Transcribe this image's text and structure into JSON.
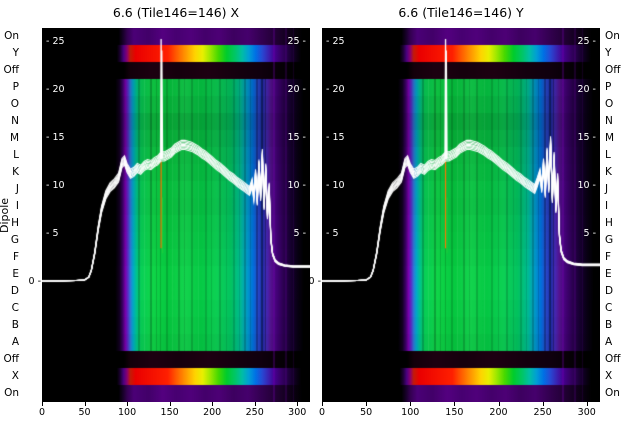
{
  "chart_data": {
    "type": "heatmap",
    "titles": [
      "6.6 (Tile146=146) X",
      "6.6 (Tile146=146) Y"
    ],
    "ylabel": "Dipole",
    "row_labels": [
      "On",
      "Y",
      "Off",
      "P",
      "O",
      "N",
      "M",
      "L",
      "K",
      "J",
      "I",
      "H",
      "G",
      "F",
      "E",
      "D",
      "C",
      "B",
      "A",
      "Off",
      "X",
      "On"
    ],
    "x_ticks": [
      0,
      50,
      100,
      150,
      200,
      250,
      300
    ],
    "x_range": [
      0,
      315
    ],
    "overlay_axis": {
      "zero_frac": 0.679,
      "top_frac": 0.0374,
      "max_value": 25,
      "inner_ticks": [
        25,
        20,
        15,
        10,
        5
      ],
      "zero_label": "0"
    },
    "row_kinds": [
      "on",
      "rainbow",
      "off",
      "spectrum",
      "spectrum",
      "spectrum",
      "spectrum",
      "spectrum",
      "spectrum",
      "spectrum",
      "spectrum",
      "spectrum",
      "spectrum",
      "spectrum",
      "spectrum",
      "spectrum",
      "spectrum",
      "spectrum",
      "spectrum",
      "off",
      "rainbow",
      "on"
    ],
    "row_shades": [
      0,
      0,
      0,
      0.1,
      0.14,
      0.2,
      0.16,
      0.12,
      0.1,
      0.07,
      0.08,
      0.05,
      0.04,
      0.02,
      0,
      0,
      0.01,
      0.03,
      0.06,
      0,
      0,
      0
    ],
    "palettes": {
      "spectrum": [
        [
          0,
          "#000000"
        ],
        [
          86,
          "#000000"
        ],
        [
          91,
          "#120020"
        ],
        [
          95,
          "#3f006c"
        ],
        [
          98,
          "#7b00ae"
        ],
        [
          101,
          "#5a2ec8"
        ],
        [
          104,
          "#2e7ad8"
        ],
        [
          107,
          "#00aacb"
        ],
        [
          111,
          "#00c48e"
        ],
        [
          116,
          "#08d058"
        ],
        [
          130,
          "#10d648"
        ],
        [
          150,
          "#06ca40"
        ],
        [
          168,
          "#14d44e"
        ],
        [
          186,
          "#05ca44"
        ],
        [
          205,
          "#0dd154"
        ],
        [
          222,
          "#03c460"
        ],
        [
          233,
          "#00bd92"
        ],
        [
          241,
          "#009cc9"
        ],
        [
          248,
          "#0071dd"
        ],
        [
          254,
          "#2b49cc"
        ],
        [
          259,
          "#1d2fa9"
        ],
        [
          264,
          "#4629b5"
        ],
        [
          269,
          "#55128f"
        ],
        [
          276,
          "#440278"
        ],
        [
          284,
          "#2b0150"
        ],
        [
          292,
          "#180032"
        ],
        [
          300,
          "#0a0016"
        ],
        [
          308,
          "#000000"
        ],
        [
          315,
          "#000000"
        ]
      ],
      "rainbow": [
        [
          0,
          "#000000"
        ],
        [
          88,
          "#000000"
        ],
        [
          92,
          "#1d0034"
        ],
        [
          96,
          "#4b0081"
        ],
        [
          100,
          "#8a0071"
        ],
        [
          104,
          "#c41c06"
        ],
        [
          110,
          "#ea0000"
        ],
        [
          148,
          "#ff2000"
        ],
        [
          158,
          "#ff5c00"
        ],
        [
          170,
          "#ff9e00"
        ],
        [
          180,
          "#ffd400"
        ],
        [
          189,
          "#e8f000"
        ],
        [
          197,
          "#a4e900"
        ],
        [
          207,
          "#47d900"
        ],
        [
          217,
          "#00cc2c"
        ],
        [
          227,
          "#00c667"
        ],
        [
          235,
          "#00bfa4"
        ],
        [
          243,
          "#009fd5"
        ],
        [
          251,
          "#0071e5"
        ],
        [
          259,
          "#2848d3"
        ],
        [
          266,
          "#3a23b3"
        ],
        [
          273,
          "#470092"
        ],
        [
          281,
          "#370067"
        ],
        [
          289,
          "#230044"
        ],
        [
          297,
          "#100020"
        ],
        [
          305,
          "#000000"
        ],
        [
          315,
          "#000000"
        ]
      ],
      "on": [
        [
          0,
          "#000000"
        ],
        [
          90,
          "#000000"
        ],
        [
          95,
          "#160027"
        ],
        [
          100,
          "#330050"
        ],
        [
          108,
          "#4b0077"
        ],
        [
          125,
          "#420069"
        ],
        [
          142,
          "#540080"
        ],
        [
          158,
          "#470071"
        ],
        [
          175,
          "#50007b"
        ],
        [
          192,
          "#44006b"
        ],
        [
          208,
          "#4d0076"
        ],
        [
          225,
          "#3d0060"
        ],
        [
          242,
          "#46006d"
        ],
        [
          256,
          "#350053"
        ],
        [
          270,
          "#27003d"
        ],
        [
          284,
          "#170024"
        ],
        [
          296,
          "#0a0011"
        ],
        [
          306,
          "#000000"
        ],
        [
          315,
          "#000000"
        ]
      ],
      "off": [
        [
          0,
          "#000000"
        ],
        [
          96,
          "#000000"
        ],
        [
          104,
          "#14000b"
        ],
        [
          130,
          "#1d0011"
        ],
        [
          160,
          "#16000d"
        ],
        [
          195,
          "#1e0012"
        ],
        [
          230,
          "#15000f"
        ],
        [
          258,
          "#10000e"
        ],
        [
          280,
          "#070007"
        ],
        [
          300,
          "#000000"
        ],
        [
          315,
          "#000000"
        ]
      ]
    },
    "stripes": [
      {
        "x": 113,
        "w": 2,
        "c": "rgba(0,0,0,0.18)"
      },
      {
        "x": 120,
        "w": 1,
        "c": "rgba(200,255,200,0.10)"
      },
      {
        "x": 127,
        "w": 2,
        "c": "rgba(0,0,0,0.22)"
      },
      {
        "x": 134,
        "w": 1,
        "c": "rgba(0,0,0,0.15)"
      },
      {
        "x": 139,
        "w": 1,
        "c": "rgba(0,40,0,0.20)"
      },
      {
        "x": 146,
        "w": 2,
        "c": "rgba(0,0,0,0.15)"
      },
      {
        "x": 153,
        "w": 1,
        "c": "rgba(220,255,220,0.08)"
      },
      {
        "x": 160,
        "w": 2,
        "c": "rgba(0,0,0,0.18)"
      },
      {
        "x": 167,
        "w": 1,
        "c": "rgba(0,0,0,0.12)"
      },
      {
        "x": 175,
        "w": 2,
        "c": "rgba(0,0,0,0.16)"
      },
      {
        "x": 183,
        "w": 1,
        "c": "rgba(220,255,220,0.07)"
      },
      {
        "x": 191,
        "w": 2,
        "c": "rgba(0,0,0,0.14)"
      },
      {
        "x": 199,
        "w": 1,
        "c": "rgba(0,0,0,0.12)"
      },
      {
        "x": 208,
        "w": 2,
        "c": "rgba(0,0,0,0.16)"
      },
      {
        "x": 216,
        "w": 1,
        "c": "rgba(0,0,0,0.10)"
      },
      {
        "x": 224,
        "w": 2,
        "c": "rgba(0,0,0,0.14)"
      },
      {
        "x": 231,
        "w": 1,
        "c": "rgba(0,0,0,0.12)"
      },
      {
        "x": 238,
        "w": 2,
        "c": "rgba(0,0,0,0.18)"
      },
      {
        "x": 245,
        "w": 1,
        "c": "rgba(0,0,0,0.15)"
      },
      {
        "x": 251,
        "w": 2,
        "c": "rgba(0,0,30,0.30)"
      },
      {
        "x": 257,
        "w": 2,
        "c": "rgba(0,0,0,0.35)"
      },
      {
        "x": 262,
        "w": 1,
        "c": "rgba(0,0,0,0.30)"
      },
      {
        "x": 272,
        "w": 2,
        "c": "rgba(120,0,180,0.30)",
        "full": true
      },
      {
        "x": 286,
        "w": 2,
        "c": "rgba(95,0,150,0.26)",
        "full": true
      },
      {
        "x": 295,
        "w": 1,
        "c": "rgba(80,0,130,0.22)",
        "full": true
      }
    ],
    "vlines": [
      {
        "x": 140,
        "v0": 3.5,
        "v1": 12.6,
        "color": "#ff7300"
      },
      {
        "x": 141.6,
        "v0": 3.0,
        "v1": 8.8,
        "color": "#1ecb3c"
      }
    ],
    "spikes": [
      {
        "x": 140,
        "base": 12.8,
        "peak": 25.3
      },
      {
        "x": 140.8,
        "base": 12.9,
        "peak": 24.1
      }
    ],
    "line_x": [
      0,
      20,
      40,
      50,
      55,
      58,
      62,
      66,
      70,
      75,
      80,
      85,
      90,
      94,
      97,
      100,
      104,
      108,
      112,
      116,
      120,
      124,
      128,
      132,
      136,
      140,
      144,
      148,
      152,
      156,
      160,
      164,
      168,
      172,
      176,
      180,
      184,
      188,
      192,
      196,
      200,
      205,
      210,
      215,
      220,
      225,
      230,
      235,
      238,
      241,
      244,
      247,
      249,
      251,
      253,
      255,
      257,
      259,
      261,
      263,
      265,
      267,
      269,
      271,
      274,
      278,
      285,
      295,
      305,
      315
    ],
    "line_y": [
      0.1,
      0.1,
      0.15,
      0.2,
      0.5,
      1.2,
      3,
      5.5,
      7.5,
      9,
      9.8,
      10.2,
      10.8,
      12.3,
      12.6,
      11.8,
      11.2,
      11.4,
      11.8,
      11.6,
      12,
      12.2,
      12.1,
      12.4,
      12.6,
      13,
      13.0,
      13.2,
      13.4,
      13.8,
      14.0,
      14.2,
      14.2,
      14.1,
      14.0,
      13.8,
      13.6,
      13.3,
      13.1,
      12.8,
      12.5,
      12.1,
      11.8,
      11.4,
      11.0,
      10.7,
      10.3,
      10.0,
      9.8,
      9.6,
      9.4,
      10.2,
      8.8,
      11.2,
      8.3,
      12.2,
      8.8,
      13.3,
      7.8,
      11.8,
      6.8,
      9.8,
      4.4,
      2.9,
      2.2,
      1.9,
      1.7,
      1.6,
      1.6,
      1.6
    ],
    "trace_offsets": [
      0,
      0.12,
      -0.12,
      0.26,
      -0.26,
      0.4,
      -0.4,
      0.55
    ],
    "panels": [
      {
        "name": "X",
        "tail_scale": 1.0
      },
      {
        "name": "Y",
        "tail_scale": 1.1
      }
    ],
    "colors": {
      "trace": "#ffffff",
      "background": "#ffffff",
      "text": "#000000"
    }
  }
}
